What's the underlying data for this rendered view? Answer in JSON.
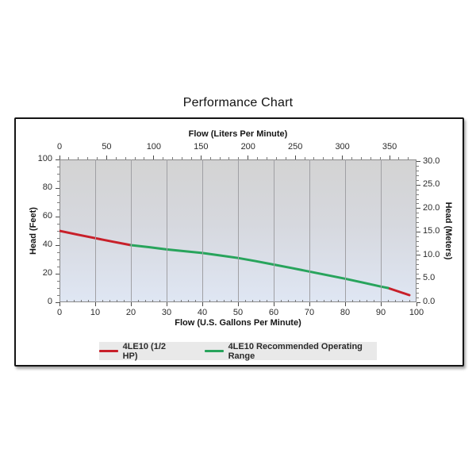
{
  "chart_data": {
    "type": "line",
    "title": "Performance Chart",
    "x_bottom": {
      "label": "Flow (U.S. Gallons Per Minute)",
      "ticks": [
        0,
        10,
        20,
        30,
        40,
        50,
        60,
        70,
        80,
        90,
        100
      ],
      "min": 0,
      "max": 100
    },
    "x_top": {
      "label": "Flow (Liters Per Minute)",
      "ticks": [
        0,
        50,
        100,
        150,
        200,
        250,
        300,
        350
      ]
    },
    "y_left": {
      "label": "Head (Feet)",
      "ticks": [
        0,
        20,
        40,
        60,
        80,
        100
      ],
      "min": 0,
      "max": 100
    },
    "y_right": {
      "label": "Head (Meters)",
      "ticks": [
        "0.0",
        "5.0",
        "10.0",
        "15.0",
        "20.0",
        "25.0",
        "30.0"
      ]
    },
    "grid": "vertical-only",
    "legend_position": "bottom",
    "point_units": [
      "us_gallons_per_minute",
      "feet_of_head"
    ],
    "series": [
      {
        "name": "4LE10 (1/2 HP)",
        "color": "#c8202a",
        "segments": [
          [
            [
              0,
              50
            ],
            [
              5,
              47.4
            ],
            [
              10,
              44.9
            ],
            [
              15,
              42.4
            ],
            [
              20,
              40
            ]
          ],
          [
            [
              92,
              10
            ],
            [
              95,
              7.5
            ],
            [
              98,
              5
            ]
          ]
        ]
      },
      {
        "name": "4LE10 Recommended Operating Range",
        "color": "#28a45c",
        "segments": [
          [
            [
              20,
              40
            ],
            [
              25,
              38.6
            ],
            [
              30,
              37
            ],
            [
              35,
              35.8
            ],
            [
              40,
              34.5
            ],
            [
              45,
              32.8
            ],
            [
              50,
              31
            ],
            [
              55,
              28.8
            ],
            [
              60,
              26.4
            ],
            [
              65,
              24
            ],
            [
              70,
              21.5
            ],
            [
              75,
              19
            ],
            [
              80,
              16.5
            ],
            [
              85,
              13.8
            ],
            [
              90,
              11
            ],
            [
              92,
              10
            ]
          ]
        ]
      }
    ],
    "colors": {
      "plot_bg_top": "#d3d3d3",
      "plot_bg_bottom": "#dfe6f3",
      "gridline": "#a0a0a4",
      "legend_bg": "#e9e9e9",
      "frame_border": "#151515"
    }
  }
}
